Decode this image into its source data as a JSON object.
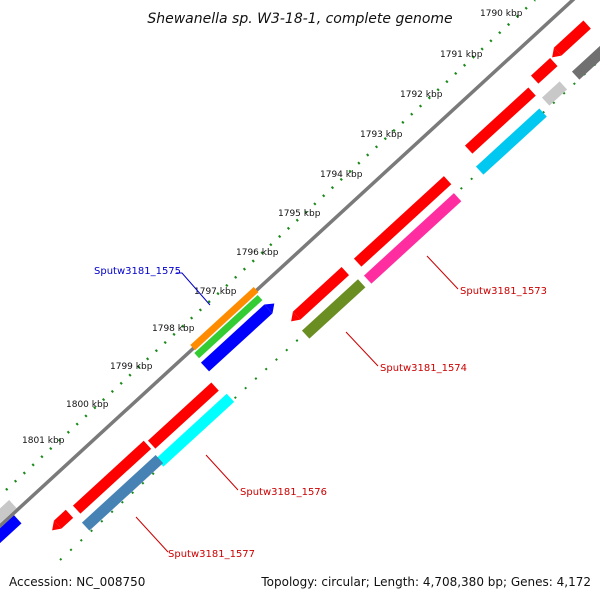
{
  "title": "Shewanella sp. W3-18-1, complete genome",
  "footer": {
    "accession": "Accession: NC_008750",
    "summary": "Topology: circular; Length: 4,708,380 bp; Genes: 4,172"
  },
  "ticks": [
    "1790 kbp",
    "1791 kbp",
    "1792 kbp",
    "1793 kbp",
    "1794 kbp",
    "1795 kbp",
    "1796 kbp",
    "1797 kbp",
    "1798 kbp",
    "1799 kbp",
    "1800 kbp",
    "1801 kbp"
  ],
  "gene_labels": [
    {
      "text": "Sputw3181_1575",
      "color": "#0000cc"
    },
    {
      "text": "Sputw3181_1573",
      "color": "#cc0000"
    },
    {
      "text": "Sputw3181_1574",
      "color": "#cc0000"
    },
    {
      "text": "Sputw3181_1576",
      "color": "#cc0000"
    },
    {
      "text": "Sputw3181_1577",
      "color": "#cc0000"
    }
  ],
  "colors": {
    "backbone": "#7a7a7a",
    "gene_red": "#ff0000",
    "gene_cyan": "#00c8f0",
    "gene_pink": "#ff2da0",
    "gene_olive": "#6b8e23",
    "gene_blue": "#0000ff",
    "gene_orange": "#ff8c00",
    "gene_green": "#33cc33",
    "gene_steel": "#4682b4",
    "gene_aqua": "#00ffff",
    "gene_grey": "#c8c8c8",
    "gene_dark": "#707070",
    "tick_green": "#1a8a1a"
  }
}
